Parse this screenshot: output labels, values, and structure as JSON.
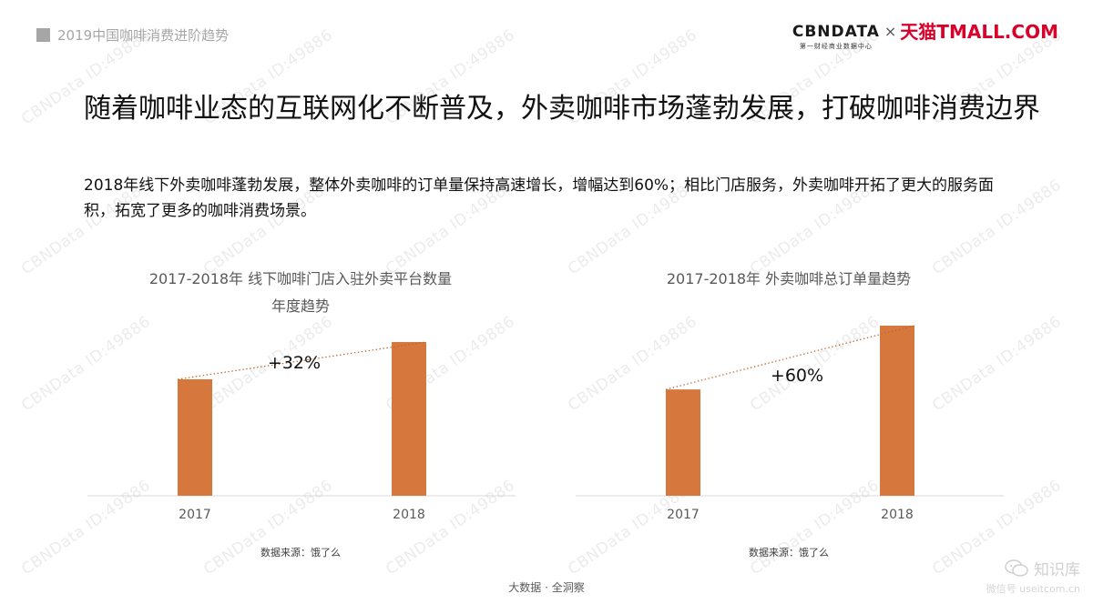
{
  "report_title": "2019中国咖啡消费进阶趋势",
  "brand": {
    "cbn_logo": "CBNDATA",
    "cbn_tagline": "第一财经商业数据中心",
    "separator": "×",
    "tmall_logo": "天猫TMALL.COM"
  },
  "headline": "随着咖啡业态的互联网化不断普及，外卖咖啡市场蓬勃发展，打破咖啡消费边界",
  "description": "2018年线下外卖咖啡蓬勃发展，整体外卖咖啡的订单量保持高速增长，增幅达到60%；相比门店服务，外卖咖啡开拓了更大的服务面积，拓宽了更多的咖啡消费场景。",
  "watermark_text": "CBNData ID:49886",
  "colors": {
    "bar": "#D6783E",
    "trend_line": "#C0642E",
    "axis": "#D9D9D9"
  },
  "chart_data": [
    {
      "type": "bar",
      "title": [
        "2017-2018年 线下咖啡门店入驻外卖平台数量",
        "年度趋势"
      ],
      "categories": [
        "2017",
        "2018"
      ],
      "values": [
        100,
        132
      ],
      "value_note": "relative index, 2017 = 100",
      "growth_label": "+32%",
      "source": "数据来源：饿了么"
    },
    {
      "type": "bar",
      "title": [
        "2017-2018年 外卖咖啡总订单量趋势"
      ],
      "categories": [
        "2017",
        "2018"
      ],
      "values": [
        100,
        160
      ],
      "value_note": "relative index, 2017 = 100",
      "growth_label": "+60%",
      "source": "数据来源：饿了么"
    }
  ],
  "footer": "大数据 · 全洞察",
  "wechat": {
    "name": "知识库",
    "id": "微信号 useitcom.cn"
  }
}
